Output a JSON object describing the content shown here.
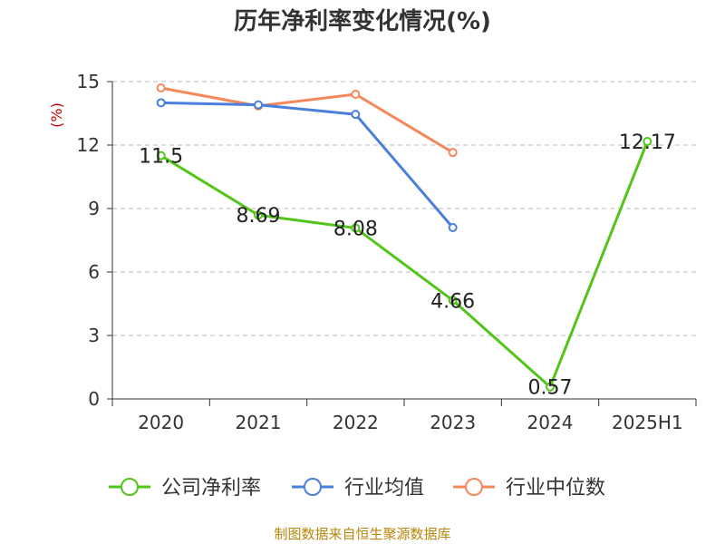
{
  "chart_data": {
    "type": "line",
    "title": "历年净利率变化情况(%)",
    "unit_label": "(%)",
    "categories": [
      "2020",
      "2021",
      "2022",
      "2023",
      "2024",
      "2025H1"
    ],
    "y_ticks": [
      "0",
      "3",
      "6",
      "9",
      "12",
      "15"
    ],
    "ylim": [
      0,
      15
    ],
    "grid": true,
    "legend_position": "bottom",
    "series": [
      {
        "name": "公司净利率",
        "color": "#52c41a",
        "values": [
          11.5,
          8.69,
          8.08,
          4.66,
          0.57,
          12.17
        ],
        "labels": [
          "11.5",
          "8.69",
          "8.08",
          "4.66",
          "0.57",
          "12.17"
        ]
      },
      {
        "name": "行业均值",
        "color": "#4a7fdc",
        "values": [
          14.0,
          13.9,
          13.45,
          8.1,
          null,
          null
        ]
      },
      {
        "name": "行业中位数",
        "color": "#f5885a",
        "values": [
          14.7,
          13.85,
          14.4,
          11.65,
          null,
          null
        ]
      }
    ]
  },
  "source": "制图数据来自恒生聚源数据库"
}
